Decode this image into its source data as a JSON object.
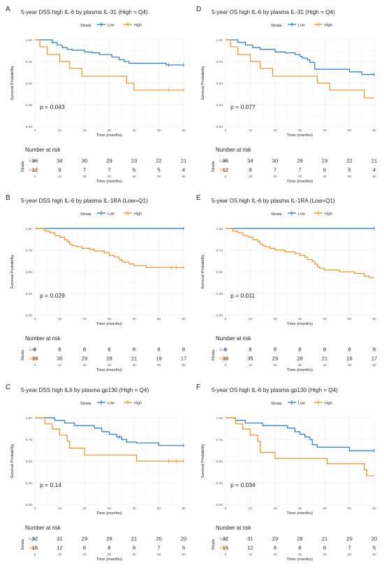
{
  "panels": [
    {
      "letter": "A",
      "title": "5-year DSS high IL-6 by plasma IL-31 (High = Q4)",
      "legend_title": "Strata",
      "colors": {
        "Low": "#1f77d0",
        "High": "#f28e1c"
      },
      "chart_data": {
        "type": "line",
        "xlabel": "Time (months)",
        "ylabel": "Survival Probability",
        "xlim": [
          0,
          60
        ],
        "ylim": [
          0,
          1
        ],
        "xticks": [
          0,
          10,
          20,
          30,
          40,
          50,
          60
        ],
        "yticks": [
          "0.00",
          "0.25",
          "0.50",
          "0.75",
          "1.00"
        ],
        "legend_position": "top",
        "pvalue": "p = 0.043",
        "series": [
          {
            "name": "Low",
            "x": [
              0,
              7,
              9,
              11,
              13,
              15,
              20,
              23,
              26,
              31,
              34,
              36,
              38,
              53,
              60
            ],
            "y": [
              1.0,
              0.97,
              0.94,
              0.91,
              0.89,
              0.88,
              0.86,
              0.85,
              0.83,
              0.8,
              0.77,
              0.75,
              0.73,
              0.71,
              0.71
            ],
            "censor": [
              7,
              54,
              60
            ]
          },
          {
            "name": "High",
            "x": [
              0,
              2,
              5,
              10,
              14,
              19,
              37,
              40,
              60
            ],
            "y": [
              1.0,
              0.92,
              0.83,
              0.75,
              0.67,
              0.58,
              0.5,
              0.42,
              0.42
            ],
            "censor": [
              54,
              60
            ]
          }
        ]
      },
      "risk_table": {
        "title": "Number at risk",
        "strata_label": "Strata",
        "xticks": [
          0,
          10,
          20,
          30,
          40,
          50,
          60
        ],
        "rows": [
          {
            "name": "Low",
            "values": [
              35,
              34,
              30,
              29,
              23,
              22,
              21
            ]
          },
          {
            "name": "High",
            "values": [
              12,
              9,
              7,
              7,
              6,
              5,
              4
            ]
          }
        ]
      }
    },
    {
      "letter": "D",
      "title": "5-year OS high IL-6 by plasma IL-31 (High = Q4)",
      "legend_title": "Strata",
      "colors": {
        "Low": "#1f77d0",
        "High": "#f28e1c"
      },
      "chart_data": {
        "type": "line",
        "xlabel": "Time (months)",
        "ylabel": "Survival Probability",
        "xlim": [
          0,
          60
        ],
        "ylim": [
          0,
          1
        ],
        "xticks": [
          0,
          10,
          20,
          30,
          40,
          50,
          60
        ],
        "yticks": [
          "0.00",
          "0.25",
          "0.50",
          "0.75",
          "1.00"
        ],
        "legend_position": "top",
        "pvalue": "p = 0.077",
        "series": [
          {
            "name": "Low",
            "x": [
              0,
              5,
              8,
              11,
              14,
              20,
              24,
              28,
              30,
              31,
              33,
              34,
              36,
              42,
              50,
              55,
              60
            ],
            "y": [
              1.0,
              0.97,
              0.94,
              0.91,
              0.89,
              0.86,
              0.85,
              0.83,
              0.81,
              0.79,
              0.77,
              0.74,
              0.66,
              0.66,
              0.63,
              0.6,
              0.6
            ],
            "censor": [
              60
            ]
          },
          {
            "name": "High",
            "x": [
              0,
              2,
              5,
              10,
              14,
              19,
              37,
              42,
              56,
              60
            ],
            "y": [
              1.0,
              0.92,
              0.83,
              0.75,
              0.67,
              0.58,
              0.5,
              0.42,
              0.33,
              0.33
            ],
            "censor": []
          }
        ]
      },
      "risk_table": {
        "title": "Number at risk",
        "strata_label": "Strata",
        "xticks": [
          0,
          10,
          20,
          30,
          40,
          50,
          60
        ],
        "rows": [
          {
            "name": "Low",
            "values": [
              35,
              34,
              30,
              29,
              23,
              22,
              21
            ]
          },
          {
            "name": "High",
            "values": [
              12,
              9,
              7,
              7,
              6,
              5,
              4
            ]
          }
        ]
      }
    },
    {
      "letter": "B",
      "title": "5-year DSS high IL-6 by plasma IL-1RA (Low=Q1)",
      "legend_title": "Strata",
      "colors": {
        "Low": "#1f77d0",
        "High": "#f28e1c"
      },
      "chart_data": {
        "type": "line",
        "xlabel": "Time (months)",
        "ylabel": "Survival Probability",
        "xlim": [
          0,
          60
        ],
        "ylim": [
          0,
          1
        ],
        "xticks": [
          0,
          10,
          20,
          30,
          40,
          50,
          60
        ],
        "yticks": [
          "0.00",
          "0.25",
          "0.50",
          "0.75",
          "1.00"
        ],
        "legend_position": "top",
        "pvalue": "p = 0.029",
        "series": [
          {
            "name": "Low",
            "x": [
              0,
              60
            ],
            "y": [
              1.0,
              1.0
            ],
            "censor": [
              60
            ]
          },
          {
            "name": "High",
            "x": [
              0,
              4,
              6,
              8,
              10,
              12,
              13,
              14,
              15,
              17,
              19,
              22,
              24,
              28,
              30,
              32,
              34,
              35,
              36,
              38,
              40,
              45,
              60
            ],
            "y": [
              1.0,
              0.97,
              0.95,
              0.92,
              0.9,
              0.87,
              0.85,
              0.82,
              0.8,
              0.79,
              0.77,
              0.76,
              0.74,
              0.72,
              0.69,
              0.67,
              0.64,
              0.62,
              0.61,
              0.59,
              0.57,
              0.55,
              0.55
            ],
            "censor": [
              55,
              57,
              60
            ]
          }
        ]
      },
      "risk_table": {
        "title": "Number at risk",
        "strata_label": "Strata",
        "xticks": [
          0,
          10,
          20,
          30,
          40,
          50,
          60
        ],
        "rows": [
          {
            "name": "Low",
            "values": [
              8,
              8,
              8,
              8,
              8,
              8,
              8
            ]
          },
          {
            "name": "High",
            "values": [
              39,
              35,
              29,
              28,
              21,
              19,
              17
            ]
          }
        ]
      }
    },
    {
      "letter": "E",
      "title": "5-year OS high IL-6 by plasma IL-1RA (Low=Q1)",
      "legend_title": "Strata",
      "colors": {
        "Low": "#1f77d0",
        "High": "#f28e1c"
      },
      "chart_data": {
        "type": "line",
        "xlabel": "Time (months)",
        "ylabel": "Survival Probability",
        "xlim": [
          0,
          60
        ],
        "ylim": [
          0,
          1
        ],
        "xticks": [
          0,
          10,
          20,
          30,
          40,
          50,
          60
        ],
        "yticks": [
          "0.00",
          "0.25",
          "0.50",
          "0.75",
          "1.00"
        ],
        "legend_position": "top",
        "pvalue": "p = 0.011",
        "series": [
          {
            "name": "Low",
            "x": [
              0,
              60
            ],
            "y": [
              1.0,
              1.0
            ],
            "censor": [
              60
            ]
          },
          {
            "name": "High",
            "x": [
              0,
              3,
              5,
              7,
              9,
              11,
              13,
              14,
              15,
              16,
              18,
              20,
              24,
              28,
              30,
              32,
              33,
              35,
              36,
              37,
              38,
              40,
              46,
              52,
              56,
              58,
              60
            ],
            "y": [
              1.0,
              0.97,
              0.95,
              0.92,
              0.9,
              0.87,
              0.85,
              0.82,
              0.8,
              0.79,
              0.77,
              0.75,
              0.73,
              0.71,
              0.69,
              0.67,
              0.64,
              0.62,
              0.59,
              0.56,
              0.54,
              0.52,
              0.5,
              0.48,
              0.45,
              0.43,
              0.43
            ],
            "censor": []
          }
        ]
      },
      "risk_table": {
        "title": "Number at risk",
        "strata_label": "Strata",
        "xticks": [
          0,
          10,
          20,
          30,
          40,
          50,
          60
        ],
        "rows": [
          {
            "name": "Low",
            "values": [
              8,
              8,
              8,
              8,
              8,
              8,
              8
            ]
          },
          {
            "name": "High",
            "values": [
              39,
              35,
              29,
              28,
              21,
              19,
              17
            ]
          }
        ]
      }
    },
    {
      "letter": "C",
      "title": "5-year DSS high IL6 by plasma gp130 (High = Q4)",
      "legend_title": "Strata",
      "colors": {
        "Low": "#1f77d0",
        "High": "#f28e1c"
      },
      "chart_data": {
        "type": "line",
        "xlabel": "Time (months)",
        "ylabel": "Survival Probability",
        "xlim": [
          0,
          60
        ],
        "ylim": [
          0,
          1
        ],
        "xticks": [
          0,
          10,
          20,
          30,
          40,
          50,
          60
        ],
        "yticks": [
          "0.00",
          "0.25",
          "0.50",
          "0.75",
          "1.00"
        ],
        "legend_position": "top",
        "pvalue": "p = 0.14",
        "series": [
          {
            "name": "Low",
            "x": [
              0,
              8,
              12,
              16,
              24,
              27,
              30,
              33,
              35,
              37,
              41,
              50,
              60
            ],
            "y": [
              1.0,
              0.97,
              0.94,
              0.91,
              0.88,
              0.84,
              0.81,
              0.78,
              0.75,
              0.72,
              0.71,
              0.68,
              0.68
            ],
            "censor": [
              34,
              60
            ]
          },
          {
            "name": "High",
            "x": [
              0,
              4,
              7,
              10,
              13,
              14,
              20,
              41,
              60
            ],
            "y": [
              1.0,
              0.93,
              0.87,
              0.8,
              0.73,
              0.65,
              0.57,
              0.5,
              0.5
            ],
            "censor": [
              54,
              57,
              60
            ]
          }
        ]
      },
      "risk_table": {
        "title": "Number at risk",
        "strata_label": "Strata",
        "xticks": [
          0,
          10,
          20,
          30,
          40,
          50,
          60
        ],
        "rows": [
          {
            "name": "Low",
            "values": [
              32,
              31,
              29,
              28,
              21,
              20,
              20
            ]
          },
          {
            "name": "High",
            "values": [
              15,
              12,
              8,
              8,
              8,
              7,
              5
            ]
          }
        ]
      }
    },
    {
      "letter": "F",
      "title": "5-year OS high IL-6 by plasma gp130 (High = Q4)",
      "legend_title": "Strata",
      "colors": {
        "Low": "#1f77d0",
        "High": "#f28e1c"
      },
      "chart_data": {
        "type": "line",
        "xlabel": "Time (months)",
        "ylabel": "Survival Probability",
        "xlim": [
          0,
          60
        ],
        "ylim": [
          0,
          1
        ],
        "xticks": [
          0,
          10,
          20,
          30,
          40,
          50,
          60
        ],
        "yticks": [
          "0.00",
          "0.25",
          "0.50",
          "0.75",
          "1.00"
        ],
        "legend_position": "top",
        "pvalue": "p = 0.034",
        "series": [
          {
            "name": "Low",
            "x": [
              0,
              4,
              8,
              15,
              25,
              28,
              30,
              32,
              34,
              35,
              37,
              39,
              50,
              60
            ],
            "y": [
              1.0,
              0.97,
              0.94,
              0.91,
              0.88,
              0.84,
              0.81,
              0.78,
              0.75,
              0.69,
              0.66,
              0.66,
              0.62,
              0.62
            ],
            "censor": [
              60
            ]
          },
          {
            "name": "High",
            "x": [
              0,
              4,
              7,
              10,
              13,
              14,
              20,
              41,
              56,
              57,
              60
            ],
            "y": [
              1.0,
              0.93,
              0.87,
              0.8,
              0.73,
              0.6,
              0.53,
              0.47,
              0.4,
              0.33,
              0.33
            ],
            "censor": []
          }
        ]
      },
      "risk_table": {
        "title": "Number at risk",
        "strata_label": "Strata",
        "xticks": [
          0,
          10,
          20,
          30,
          40,
          50,
          60
        ],
        "rows": [
          {
            "name": "Low",
            "values": [
              32,
              31,
              29,
              28,
              21,
              20,
              20
            ]
          },
          {
            "name": "High",
            "values": [
              15,
              12,
              8,
              8,
              8,
              7,
              5
            ]
          }
        ]
      }
    }
  ]
}
